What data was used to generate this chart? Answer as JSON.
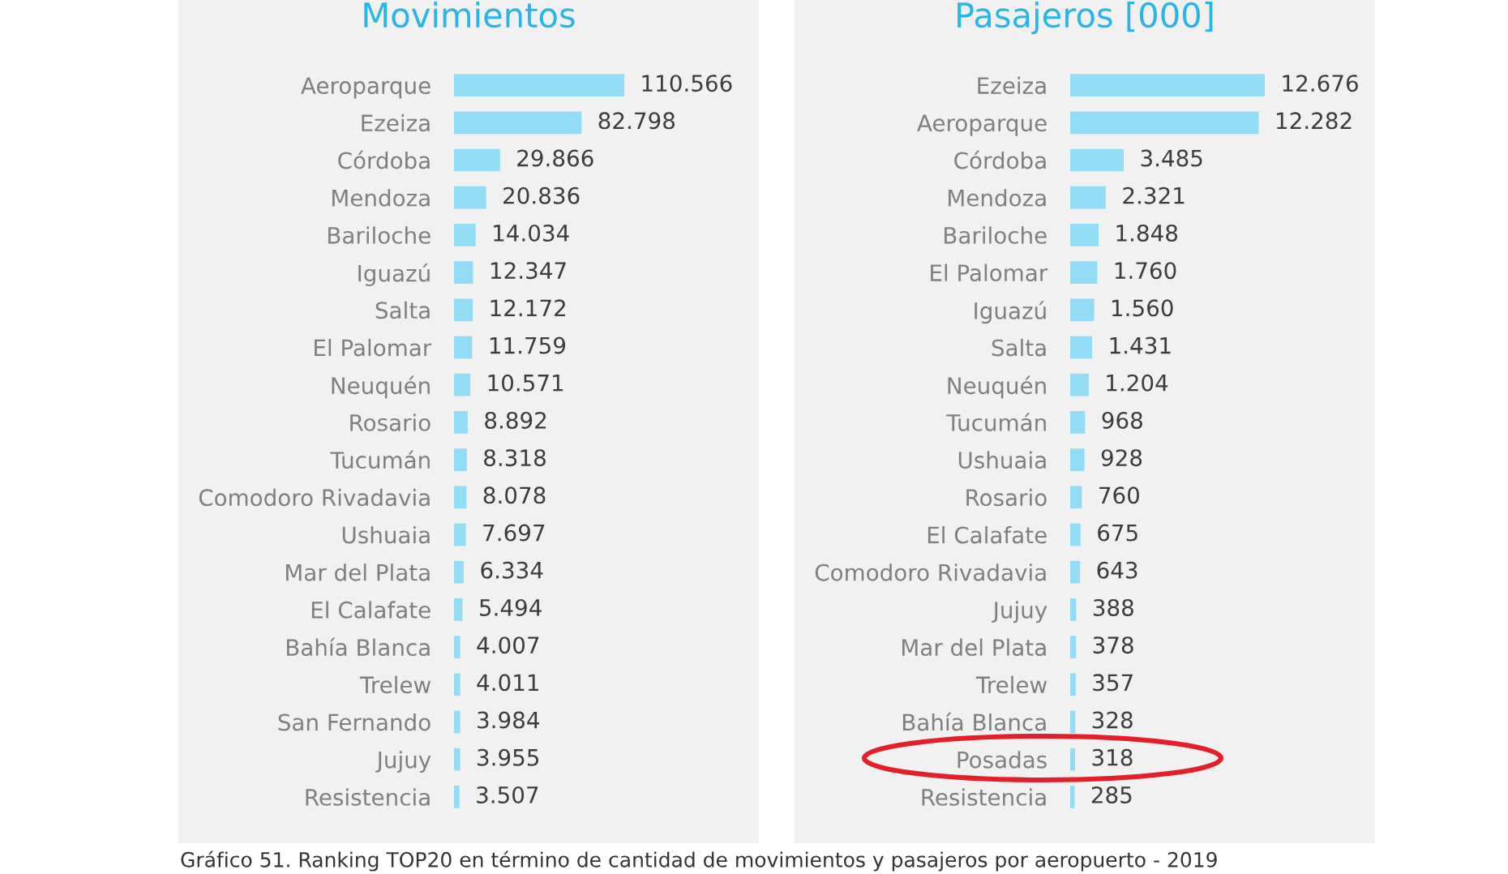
{
  "chart_data": [
    {
      "type": "bar",
      "orientation": "horizontal",
      "title": "Movimientos",
      "color": "#93dcf5",
      "tick_labels": "y",
      "categories": [
        "Aeroparque",
        "Ezeiza",
        "Córdoba",
        "Mendoza",
        "Bariloche",
        "Iguazú",
        "Salta",
        "El Palomar",
        "Neuquén",
        "Rosario",
        "Tucumán",
        "Comodoro Rivadavia",
        "Ushuaia",
        "Mar del Plata",
        "El Calafate",
        "Bahía Blanca",
        "Trelew",
        "San Fernando",
        "Jujuy",
        "Resistencia"
      ],
      "values": [
        110566,
        82798,
        29866,
        20836,
        14034,
        12347,
        12172,
        11759,
        10571,
        8892,
        8318,
        8078,
        7697,
        6334,
        5494,
        4007,
        4011,
        3984,
        3955,
        3507
      ],
      "value_labels": [
        "110.566",
        "82.798",
        "29.866",
        "20.836",
        "14.034",
        "12.347",
        "12.172",
        "11.759",
        "10.571",
        "8.892",
        "8.318",
        "8.078",
        "7.697",
        "6.334",
        "5.494",
        "4.007",
        "4.011",
        "3.984",
        "3.955",
        "3.507"
      ],
      "annotations": [
        "Gráfico 51. Ranking TOP20 en término de cantidad de movimientos y pasajeros por aeropuerto - 2019"
      ]
    },
    {
      "type": "bar",
      "orientation": "horizontal",
      "title": "Pasajeros [000]",
      "color": "#93dcf5",
      "tick_labels": "y",
      "categories": [
        "Ezeiza",
        "Aeroparque",
        "Córdoba",
        "Mendoza",
        "Bariloche",
        "El Palomar",
        "Iguazú",
        "Salta",
        "Neuquén",
        "Tucumán",
        "Ushuaia",
        "Rosario",
        "El Calafate",
        "Comodoro Rivadavia",
        "Jujuy",
        "Mar del Plata",
        "Trelew",
        "Bahía Blanca",
        "Posadas",
        "Resistencia"
      ],
      "values": [
        12676,
        12282,
        3485,
        2321,
        1848,
        1760,
        1560,
        1431,
        1204,
        968,
        928,
        760,
        675,
        643,
        388,
        378,
        357,
        328,
        318,
        285
      ],
      "value_labels": [
        "12.676",
        "12.282",
        "3.485",
        "2.321",
        "1.848",
        "1.760",
        "1.560",
        "1.431",
        "1.204",
        "968",
        "928",
        "760",
        "675",
        "643",
        "388",
        "378",
        "357",
        "328",
        "318",
        "285"
      ]
    }
  ]
}
